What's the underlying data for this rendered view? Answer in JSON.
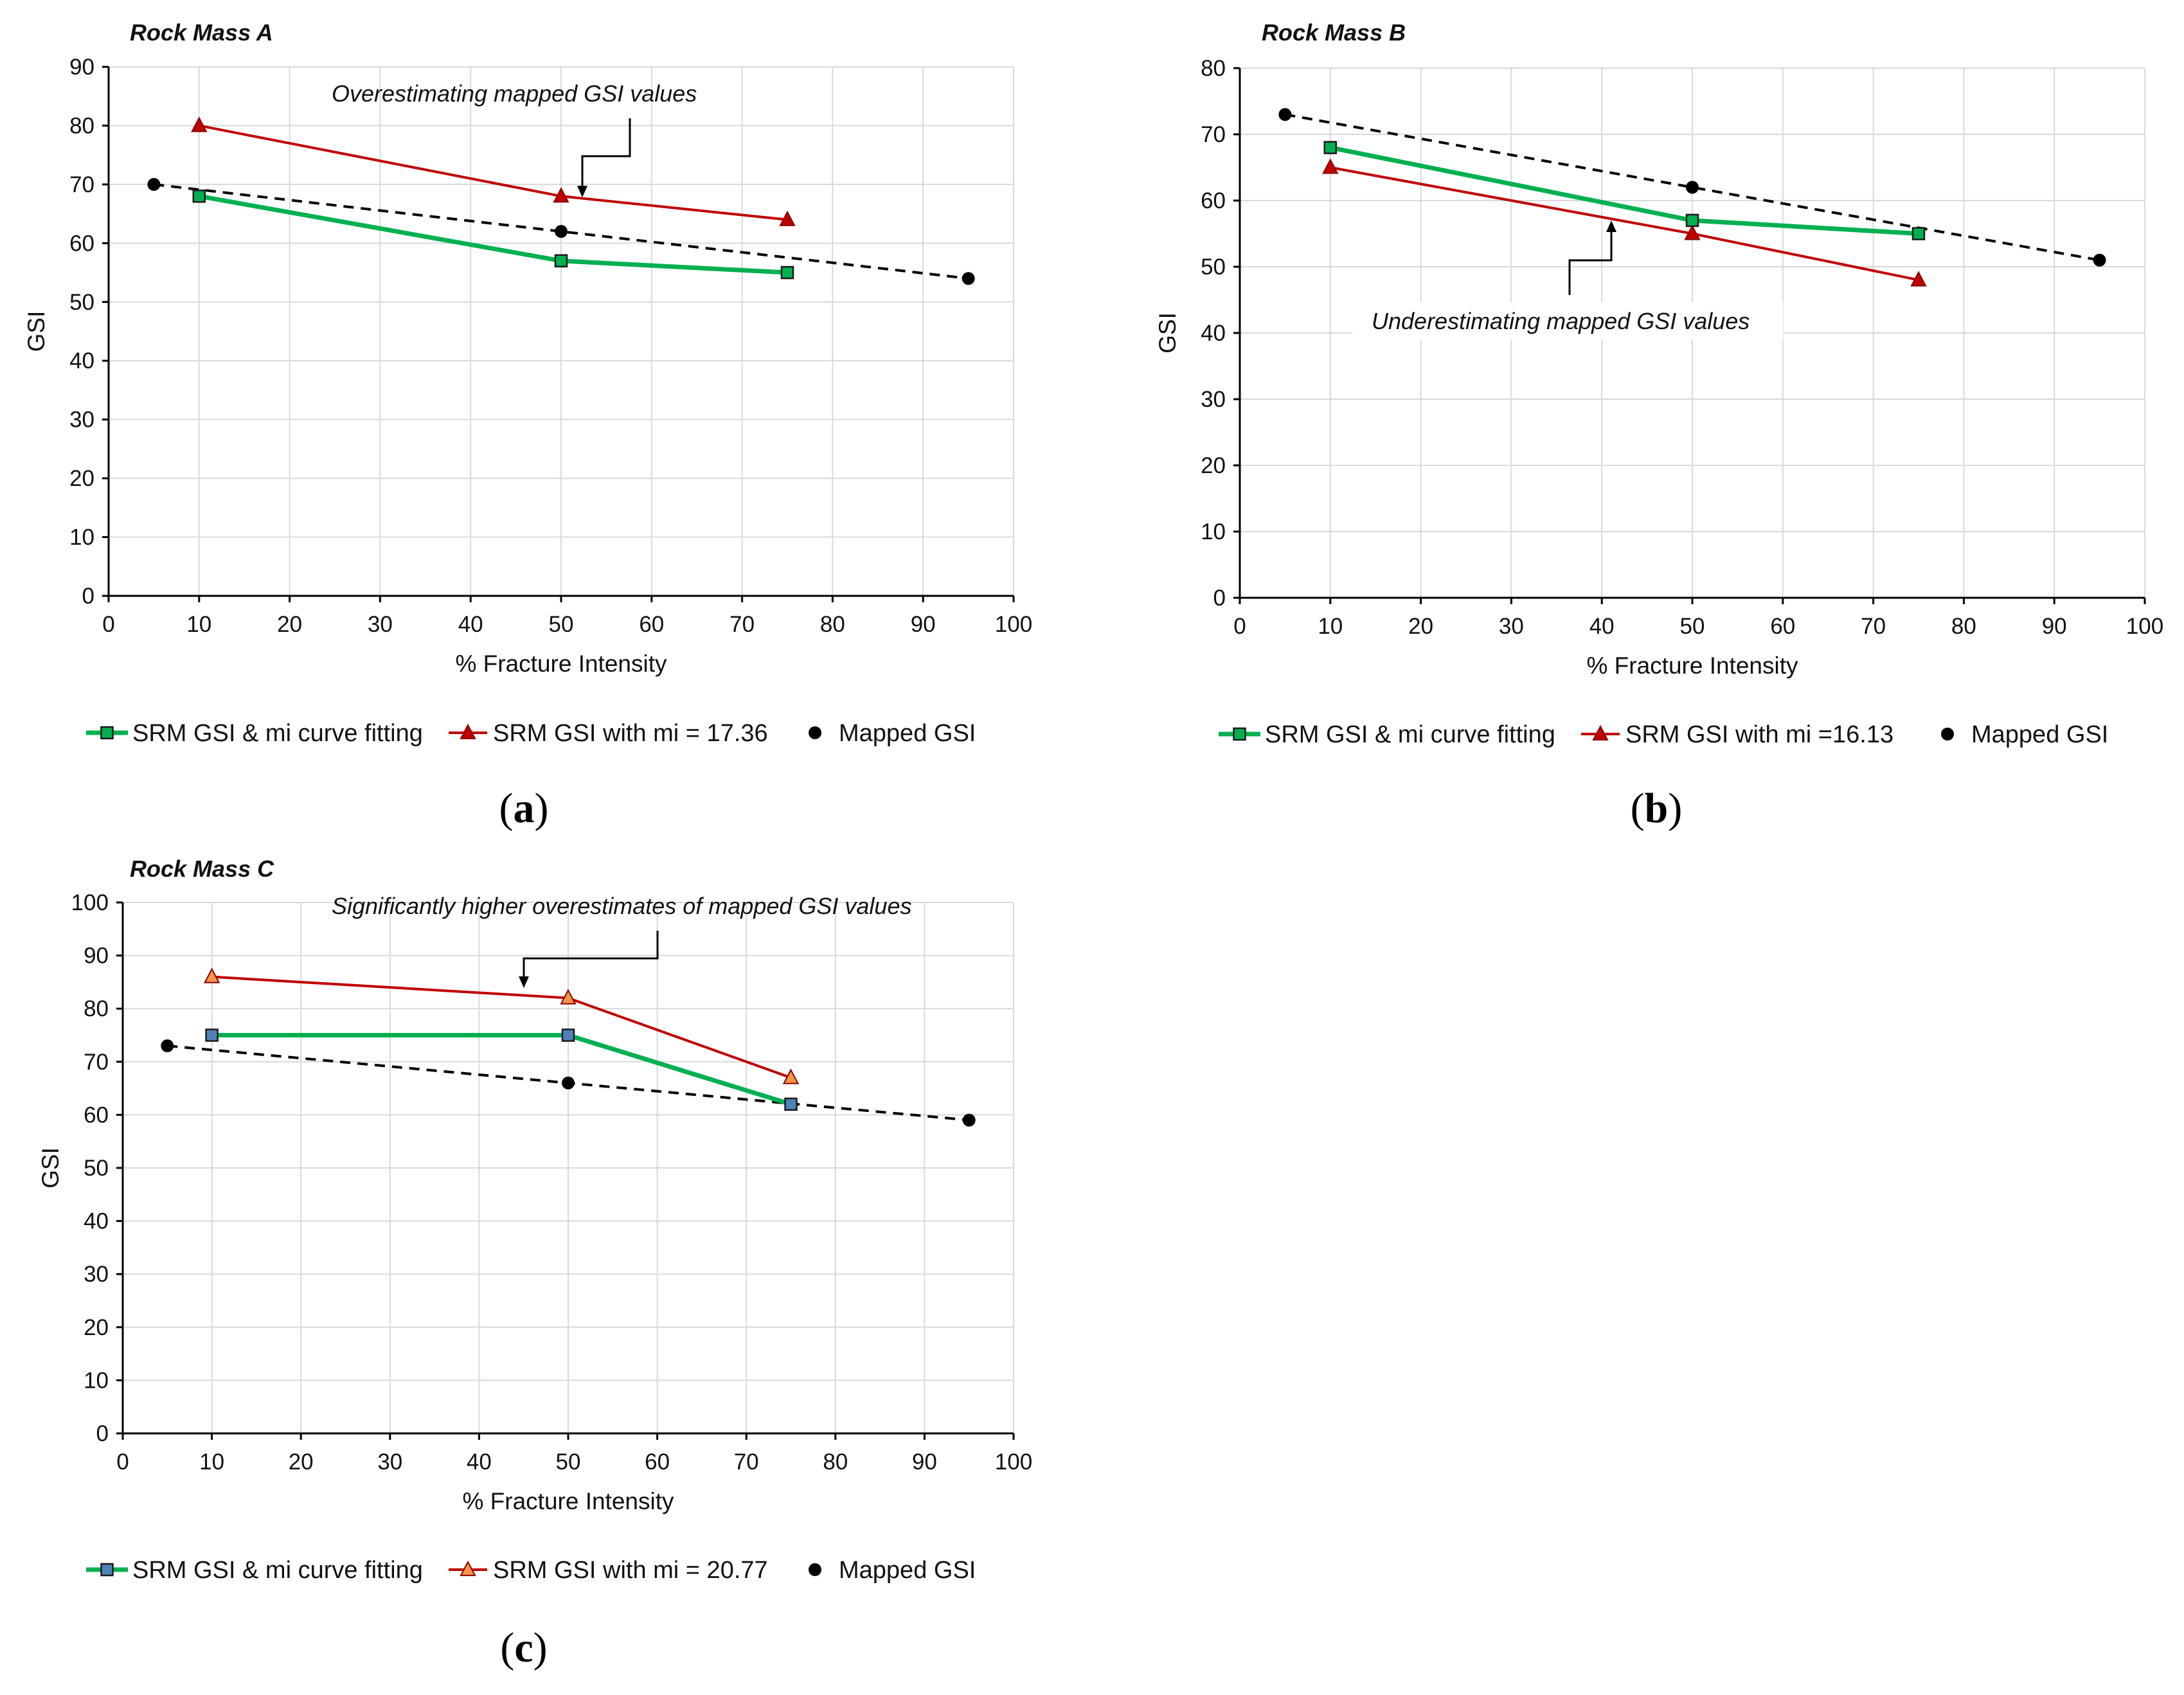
{
  "colors": {
    "green": "#00b050",
    "red": "#c00000",
    "black": "#000000",
    "grid": "#d9d9d9",
    "blue_marker": "#4f81bd",
    "orange_marker": "#f79646"
  },
  "chart_data": [
    {
      "type": "line",
      "panel": "(a)",
      "caption_letter": "a",
      "title": "Rock Mass A",
      "xlabel": "% Fracture  Intensity",
      "ylabel": "GSI",
      "xlim": [
        0,
        100
      ],
      "ylim": [
        0,
        90
      ],
      "xticks": [
        "0",
        "10",
        "20",
        "30",
        "40",
        "50",
        "60",
        "70",
        "80",
        "90",
        "100"
      ],
      "yticks": [
        "0",
        "10",
        "20",
        "30",
        "40",
        "50",
        "60",
        "70",
        "80",
        "90"
      ],
      "grid": true,
      "legend_position": "bottom",
      "annotation": "Overestimating  mapped  GSI values",
      "series": [
        {
          "name": "SRM GSI & mi curve fitting",
          "x": [
            10,
            50,
            75
          ],
          "y": [
            68,
            57,
            55
          ],
          "style": "green-square"
        },
        {
          "name": "SRM GSI with mi = 17.36",
          "x": [
            10,
            50,
            75
          ],
          "y": [
            80,
            68,
            64
          ],
          "style": "red-triangle"
        },
        {
          "name": "Mapped GSI",
          "x": [
            5,
            50,
            95
          ],
          "y": [
            70,
            62,
            54
          ],
          "style": "black-dot-dashed"
        }
      ]
    },
    {
      "type": "line",
      "panel": "(b)",
      "caption_letter": "b",
      "title": "Rock Mass B",
      "xlabel": "% Fracture  Intensity",
      "ylabel": "GSI",
      "xlim": [
        0,
        100
      ],
      "ylim": [
        0,
        80
      ],
      "xticks": [
        "0",
        "10",
        "20",
        "30",
        "40",
        "50",
        "60",
        "70",
        "80",
        "90",
        "100"
      ],
      "yticks": [
        "0",
        "10",
        "20",
        "30",
        "40",
        "50",
        "60",
        "70",
        "80"
      ],
      "grid": true,
      "legend_position": "bottom",
      "annotation": "Underestimating  mapped  GSI values",
      "series": [
        {
          "name": "SRM GSI & mi curve fitting",
          "x": [
            10,
            50,
            75
          ],
          "y": [
            68,
            57,
            55
          ],
          "style": "green-square"
        },
        {
          "name": "SRM GSI with mi =16.13",
          "x": [
            10,
            50,
            75
          ],
          "y": [
            65,
            55,
            48
          ],
          "style": "red-triangle"
        },
        {
          "name": "Mapped GSI",
          "x": [
            5,
            50,
            95
          ],
          "y": [
            73,
            62,
            51
          ],
          "style": "black-dot-dashed"
        }
      ]
    },
    {
      "type": "line",
      "panel": "(c)",
      "caption_letter": "c",
      "title": "Rock Mass C",
      "xlabel": "% Fracture  Intensity",
      "ylabel": "GSI",
      "xlim": [
        0,
        100
      ],
      "ylim": [
        0,
        100
      ],
      "xticks": [
        "0",
        "10",
        "20",
        "30",
        "40",
        "50",
        "60",
        "70",
        "80",
        "90",
        "100"
      ],
      "yticks": [
        "0",
        "10",
        "20",
        "30",
        "40",
        "50",
        "60",
        "70",
        "80",
        "90",
        "100"
      ],
      "grid": true,
      "legend_position": "bottom",
      "annotation": "Significantly  higher  overestimates  of mapped  GSI values",
      "series": [
        {
          "name": "SRM GSI & mi curve fitting",
          "x": [
            10,
            50,
            75
          ],
          "y": [
            75,
            75,
            62
          ],
          "style": "green-bluesquare"
        },
        {
          "name": "SRM GSI with mi =  20.77",
          "x": [
            10,
            50,
            75
          ],
          "y": [
            86,
            82,
            67
          ],
          "style": "red-orangetriangle"
        },
        {
          "name": "Mapped GSI",
          "x": [
            5,
            50,
            95
          ],
          "y": [
            73,
            66,
            59
          ],
          "style": "black-dot-dashed"
        }
      ]
    }
  ]
}
